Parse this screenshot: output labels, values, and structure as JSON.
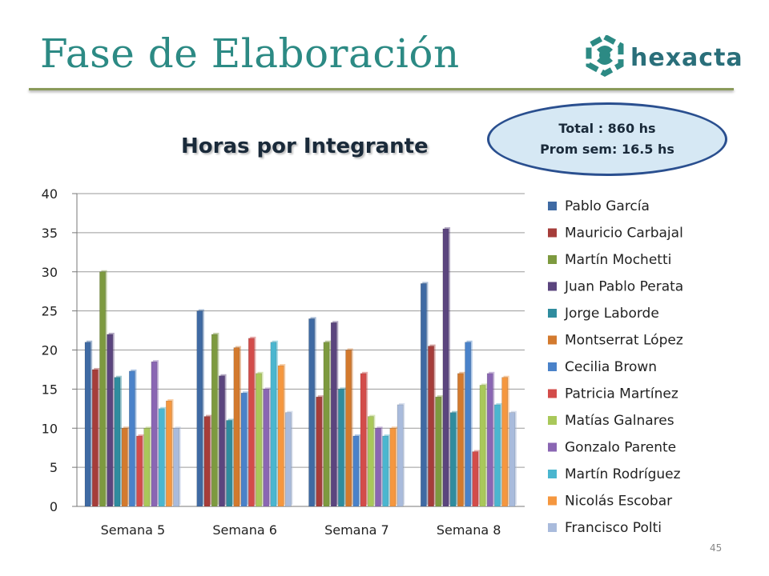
{
  "slide": {
    "title": "Fase de Elaboración",
    "page_number": "45",
    "logo_text": "hexacta",
    "total_line1": "Total : 860 hs",
    "total_line2": "Prom sem: 16.5 hs"
  },
  "chart_data": {
    "type": "bar",
    "title": "Horas por Integrante",
    "xlabel": "",
    "ylabel": "",
    "ylim": [
      0,
      40
    ],
    "yticks": [
      0,
      5,
      10,
      15,
      20,
      25,
      30,
      35,
      40
    ],
    "grid": true,
    "legend_position": "right",
    "categories": [
      "Semana 5",
      "Semana 6",
      "Semana 7",
      "Semana 8"
    ],
    "series": [
      {
        "name": "Pablo García",
        "color": "#3f6aa3",
        "values": [
          21,
          25,
          24,
          28.5
        ]
      },
      {
        "name": "Mauricio Carbajal",
        "color": "#a63d3a",
        "values": [
          17.5,
          11.5,
          14,
          20.5
        ]
      },
      {
        "name": "Martín Mochetti",
        "color": "#7d9a3f",
        "values": [
          30,
          22,
          21,
          14
        ]
      },
      {
        "name": "Juan Pablo Perata",
        "color": "#5b457e",
        "values": [
          22,
          16.7,
          23.5,
          35.5
        ]
      },
      {
        "name": "Jorge Laborde",
        "color": "#2f8c9e",
        "values": [
          16.5,
          11,
          15,
          12
        ]
      },
      {
        "name": "Montserrat López",
        "color": "#d37a2e",
        "values": [
          10,
          20.3,
          20,
          17
        ]
      },
      {
        "name": "Cecilia Brown",
        "color": "#4a82c9",
        "values": [
          17.3,
          14.5,
          9,
          21
        ]
      },
      {
        "name": "Patricia Martínez",
        "color": "#d34c4a",
        "values": [
          9,
          21.5,
          17,
          7
        ]
      },
      {
        "name": "Matías Galnares",
        "color": "#a9c85a",
        "values": [
          10,
          17,
          11.5,
          15.5
        ]
      },
      {
        "name": "Gonzalo Parente",
        "color": "#8a66b3",
        "values": [
          18.5,
          15,
          10,
          17
        ]
      },
      {
        "name": "Martín Rodríguez",
        "color": "#4bb6cf",
        "values": [
          12.5,
          21,
          9,
          13
        ]
      },
      {
        "name": "Nicolás Escobar",
        "color": "#f5973f",
        "values": [
          13.5,
          18,
          10,
          16.5
        ]
      },
      {
        "name": "Francisco Polti",
        "color": "#a9bbdc",
        "values": [
          10,
          12,
          13,
          12
        ]
      }
    ]
  }
}
